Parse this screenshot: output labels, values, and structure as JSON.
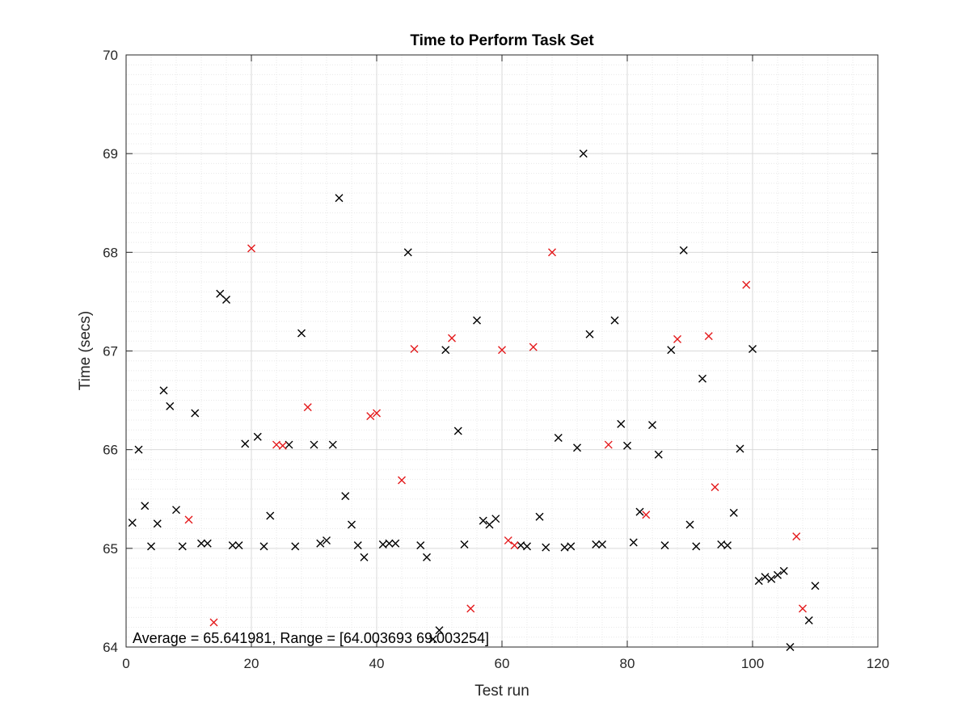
{
  "chart_data": {
    "type": "scatter",
    "title": "Time to Perform Task Set",
    "xlabel": "Test run",
    "ylabel": "Time (secs)",
    "xlim": [
      0,
      120
    ],
    "ylim": [
      64,
      70
    ],
    "xticks": [
      "0",
      "20",
      "40",
      "60",
      "80",
      "100",
      "120"
    ],
    "yticks": [
      "64",
      "65",
      "66",
      "67",
      "68",
      "69",
      "70"
    ],
    "grid": "major and minor",
    "marker": "x",
    "annotation": "Average = 65.641981, Range = [64.003693 69.003254]",
    "colors": {
      "black_series": "#000000",
      "red_series": "#e41a1c",
      "grid_major": "#d9d9d9",
      "grid_minor": "#e8e8e8",
      "axis": "#262626"
    },
    "series": [
      {
        "color": "#000000",
        "points": [
          [
            1,
            65.26
          ],
          [
            2,
            66.0
          ],
          [
            3,
            65.43
          ],
          [
            4,
            65.02
          ],
          [
            5,
            65.25
          ],
          [
            6,
            66.6
          ],
          [
            7,
            66.44
          ],
          [
            8,
            65.39
          ],
          [
            9,
            65.02
          ],
          [
            11,
            66.37
          ],
          [
            12,
            65.05
          ],
          [
            13,
            65.05
          ],
          [
            15,
            67.58
          ],
          [
            16,
            67.52
          ],
          [
            17,
            65.03
          ],
          [
            18,
            65.03
          ],
          [
            19,
            66.06
          ],
          [
            21,
            66.13
          ],
          [
            22,
            65.02
          ],
          [
            23,
            65.33
          ],
          [
            26,
            66.05
          ],
          [
            27,
            65.02
          ],
          [
            28,
            67.18
          ],
          [
            30,
            66.05
          ],
          [
            31,
            65.05
          ],
          [
            32,
            65.08
          ],
          [
            33,
            66.05
          ],
          [
            34,
            68.55
          ],
          [
            35,
            65.53
          ],
          [
            36,
            65.24
          ],
          [
            37,
            65.03
          ],
          [
            38,
            64.91
          ],
          [
            41,
            65.04
          ],
          [
            42,
            65.05
          ],
          [
            43,
            65.05
          ],
          [
            45,
            68.0
          ],
          [
            47,
            65.03
          ],
          [
            48,
            64.91
          ],
          [
            49,
            64.08
          ],
          [
            50,
            64.17
          ],
          [
            51,
            67.01
          ],
          [
            53,
            66.19
          ],
          [
            54,
            65.04
          ],
          [
            56,
            67.31
          ],
          [
            57,
            65.28
          ],
          [
            58,
            65.24
          ],
          [
            59,
            65.3
          ],
          [
            63,
            65.03
          ],
          [
            64,
            65.02
          ],
          [
            66,
            65.32
          ],
          [
            67,
            65.01
          ],
          [
            69,
            66.12
          ],
          [
            70,
            65.01
          ],
          [
            71,
            65.02
          ],
          [
            72,
            66.02
          ],
          [
            73,
            69.0
          ],
          [
            74,
            67.17
          ],
          [
            75,
            65.04
          ],
          [
            76,
            65.04
          ],
          [
            78,
            67.31
          ],
          [
            79,
            66.26
          ],
          [
            80,
            66.04
          ],
          [
            81,
            65.06
          ],
          [
            82,
            65.37
          ],
          [
            84,
            66.25
          ],
          [
            85,
            65.95
          ],
          [
            86,
            65.03
          ],
          [
            87,
            67.01
          ],
          [
            89,
            68.02
          ],
          [
            90,
            65.24
          ],
          [
            91,
            65.02
          ],
          [
            92,
            66.72
          ],
          [
            95,
            65.04
          ],
          [
            96,
            65.03
          ],
          [
            97,
            65.36
          ],
          [
            98,
            66.01
          ],
          [
            100,
            67.02
          ],
          [
            101,
            64.67
          ],
          [
            102,
            64.71
          ],
          [
            103,
            64.69
          ],
          [
            104,
            64.73
          ],
          [
            105,
            64.77
          ],
          [
            106,
            64.0
          ],
          [
            109,
            64.27
          ],
          [
            110,
            64.62
          ]
        ]
      },
      {
        "color": "#e41a1c",
        "points": [
          [
            10,
            65.29
          ],
          [
            14,
            64.25
          ],
          [
            20,
            68.04
          ],
          [
            24,
            66.05
          ],
          [
            25,
            66.04
          ],
          [
            29,
            66.43
          ],
          [
            39,
            66.34
          ],
          [
            40,
            66.37
          ],
          [
            44,
            65.69
          ],
          [
            46,
            67.02
          ],
          [
            52,
            67.13
          ],
          [
            55,
            64.39
          ],
          [
            60,
            67.01
          ],
          [
            61,
            65.08
          ],
          [
            62,
            65.03
          ],
          [
            65,
            67.04
          ],
          [
            68,
            68.0
          ],
          [
            77,
            66.05
          ],
          [
            83,
            65.34
          ],
          [
            88,
            67.12
          ],
          [
            93,
            67.15
          ],
          [
            94,
            65.62
          ],
          [
            99,
            67.67
          ],
          [
            107,
            65.12
          ],
          [
            108,
            64.39
          ]
        ]
      }
    ]
  }
}
